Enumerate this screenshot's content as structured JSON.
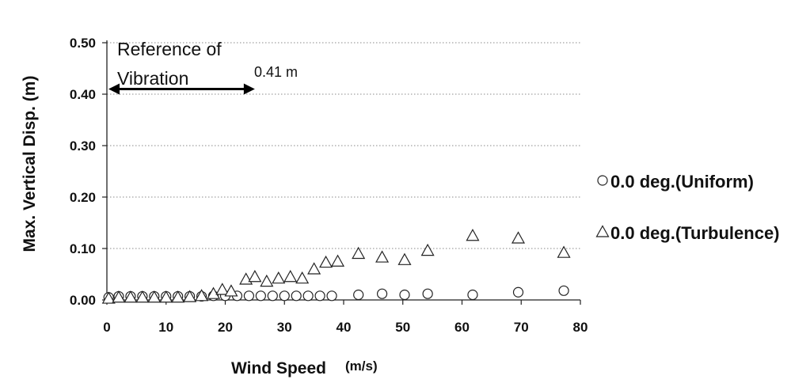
{
  "chart_data": {
    "type": "scatter",
    "xlabel": "Wind Speed",
    "xlabel_unit": "(m/s)",
    "ylabel": "Max. Vertical Disp. (m)",
    "xlim": [
      0,
      80
    ],
    "ylim": [
      0,
      0.5
    ],
    "x_ticks": [
      "0",
      "10",
      "20",
      "30",
      "40",
      "50",
      "60",
      "70",
      "80"
    ],
    "y_ticks": [
      "0.00",
      "0.10",
      "0.20",
      "0.30",
      "0.40",
      "0.50"
    ],
    "grid": "horizontal dotted",
    "legend_position": "right",
    "annotation": {
      "label_line1": "Reference of",
      "label_line2": "Vibration",
      "value_text": "0.41 m",
      "y": 0.41,
      "x_from": 0,
      "x_to": 25
    },
    "series": [
      {
        "name": "0.0 deg.(Uniform)",
        "marker": "circle",
        "points": [
          [
            0.3,
            0.005
          ],
          [
            2,
            0.007
          ],
          [
            4,
            0.007
          ],
          [
            6,
            0.007
          ],
          [
            8,
            0.007
          ],
          [
            10,
            0.007
          ],
          [
            12,
            0.007
          ],
          [
            14,
            0.007
          ],
          [
            16,
            0.007
          ],
          [
            18,
            0.008
          ],
          [
            20,
            0.008
          ],
          [
            22,
            0.008
          ],
          [
            24,
            0.008
          ],
          [
            26,
            0.008
          ],
          [
            28,
            0.008
          ],
          [
            30,
            0.008
          ],
          [
            32,
            0.008
          ],
          [
            34,
            0.008
          ],
          [
            36,
            0.008
          ],
          [
            38,
            0.008
          ],
          [
            42.5,
            0.01
          ],
          [
            46.5,
            0.012
          ],
          [
            50.3,
            0.01
          ],
          [
            54.2,
            0.012
          ],
          [
            61.8,
            0.01
          ],
          [
            69.5,
            0.015
          ],
          [
            77.2,
            0.018
          ]
        ]
      },
      {
        "name": "0.0 deg.(Turbulence)",
        "marker": "triangle",
        "points": [
          [
            0.3,
            0.003
          ],
          [
            2,
            0.005
          ],
          [
            4,
            0.005
          ],
          [
            6,
            0.005
          ],
          [
            8,
            0.005
          ],
          [
            10,
            0.005
          ],
          [
            12,
            0.005
          ],
          [
            14,
            0.006
          ],
          [
            16,
            0.008
          ],
          [
            18,
            0.012
          ],
          [
            19.5,
            0.02
          ],
          [
            21,
            0.017
          ],
          [
            23.5,
            0.04
          ],
          [
            25,
            0.045
          ],
          [
            27,
            0.036
          ],
          [
            29,
            0.042
          ],
          [
            31,
            0.045
          ],
          [
            33,
            0.042
          ],
          [
            35,
            0.06
          ],
          [
            37,
            0.073
          ],
          [
            39,
            0.075
          ],
          [
            42.5,
            0.09
          ],
          [
            46.5,
            0.083
          ],
          [
            50.3,
            0.078
          ],
          [
            54.2,
            0.096
          ],
          [
            61.8,
            0.125
          ],
          [
            69.5,
            0.12
          ],
          [
            77.2,
            0.092
          ]
        ]
      }
    ]
  }
}
